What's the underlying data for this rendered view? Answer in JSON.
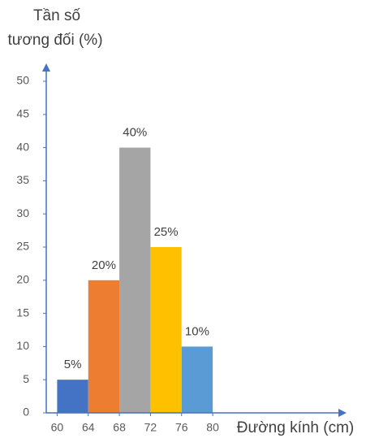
{
  "chart_data": {
    "type": "histogram",
    "ylabel": [
      "Tần số",
      "tương đối (%)"
    ],
    "xlabel": "Đường kính (cm)",
    "bins": [
      60,
      64,
      68,
      72,
      76,
      80
    ],
    "values": [
      5,
      20,
      40,
      25,
      10
    ],
    "value_labels": [
      "5%",
      "20%",
      "40%",
      "25%",
      "10%"
    ],
    "colors": [
      "#4472c4",
      "#ed7d31",
      "#a5a5a5",
      "#ffc000",
      "#5b9bd5"
    ],
    "xlim": [
      58.6,
      97
    ],
    "xticks": [
      60,
      64,
      68,
      72,
      76,
      80
    ],
    "ylim": [
      0,
      52.7
    ],
    "yticks": [
      0,
      5,
      10,
      15,
      20,
      25,
      30,
      35,
      40,
      45,
      50
    ],
    "grid": false
  }
}
